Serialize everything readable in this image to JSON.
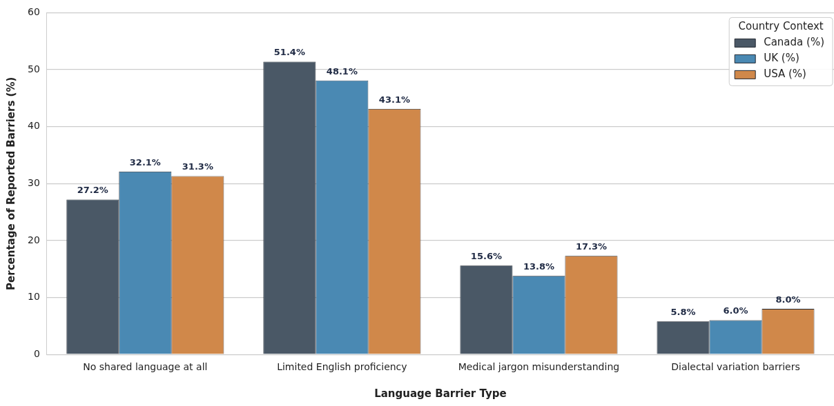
{
  "chart_data": {
    "type": "bar",
    "xlabel": "Language Barrier Type",
    "ylabel": "Percentage of Reported Barriers (%)",
    "legend_title": "Country Context",
    "categories": [
      "No shared language at all",
      "Limited English proficiency",
      "Medical jargon misunderstanding",
      "Dialectal variation barriers"
    ],
    "series": [
      {
        "name": "Canada (%)",
        "color": "#4a5866",
        "values": [
          27.2,
          51.4,
          15.6,
          5.8
        ],
        "value_labels": [
          "27.2%",
          "51.4%",
          "15.6%",
          "5.8%"
        ]
      },
      {
        "name": "UK (%)",
        "color": "#4a89b3",
        "values": [
          32.1,
          48.1,
          13.8,
          6.0
        ],
        "value_labels": [
          "32.1%",
          "48.1%",
          "13.8%",
          "6.0%"
        ]
      },
      {
        "name": "USA (%)",
        "color": "#d0884a",
        "values": [
          31.3,
          43.1,
          17.3,
          8.0
        ],
        "value_labels": [
          "31.3%",
          "43.1%",
          "17.3%",
          "8.0%"
        ]
      }
    ],
    "ylim": [
      0,
      60
    ],
    "yticks": [
      0,
      10,
      20,
      30,
      40,
      50,
      60
    ],
    "grid": "y",
    "legend": "top right"
  }
}
